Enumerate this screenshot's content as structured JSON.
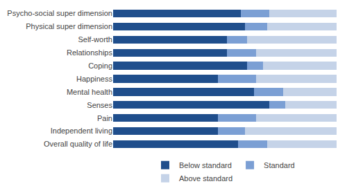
{
  "chart_data": {
    "type": "bar",
    "orientation": "horizontal",
    "stacked": true,
    "categories": [
      "Psycho-social super dimension",
      "Physical super dimension",
      "Self-worth",
      "Relationships",
      "Coping",
      "Happiness",
      "Mental health",
      "Senses",
      "Pain",
      "Independent living",
      "Overall quality of life"
    ],
    "series": [
      {
        "name": "Below standard",
        "color": "#1f4e8c",
        "values": [
          57,
          59,
          51,
          51,
          60,
          47,
          63,
          70,
          47,
          47,
          56
        ]
      },
      {
        "name": "Standard",
        "color": "#7b9fd4",
        "values": [
          13,
          10,
          9,
          13,
          7,
          17,
          13,
          7,
          17,
          12,
          13
        ]
      },
      {
        "name": "Above standard",
        "color": "#c5d3e8",
        "values": [
          30,
          31,
          40,
          36,
          33,
          36,
          24,
          23,
          36,
          41,
          31
        ]
      }
    ],
    "xlim": [
      0,
      100
    ],
    "tick_labels": "y",
    "grid": false,
    "legend": "bottom"
  }
}
